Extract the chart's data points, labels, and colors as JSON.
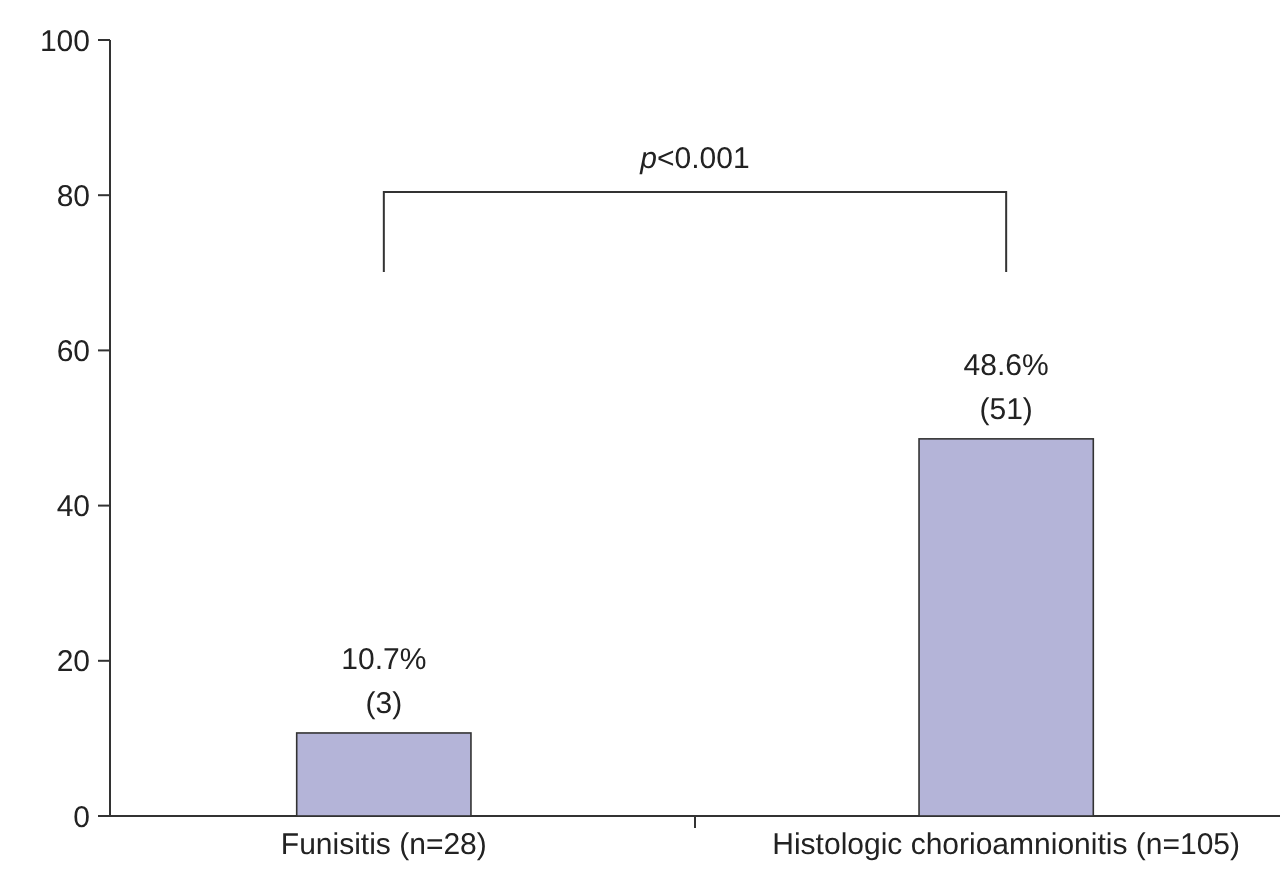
{
  "chart_data": {
    "type": "bar",
    "categories": [
      "Funisitis (n=28)",
      "Histologic chorioamnionitis (n=105)"
    ],
    "values": [
      10.7,
      48.6
    ],
    "color": "#b4b4d8",
    "value_labels": [
      "10.7%\n(3)",
      "48.6%\n(51)"
    ],
    "ylim": [
      0,
      100
    ],
    "yticks": [
      0,
      20,
      40,
      60,
      80,
      100
    ],
    "annotations": [
      "p<0.001"
    ]
  }
}
